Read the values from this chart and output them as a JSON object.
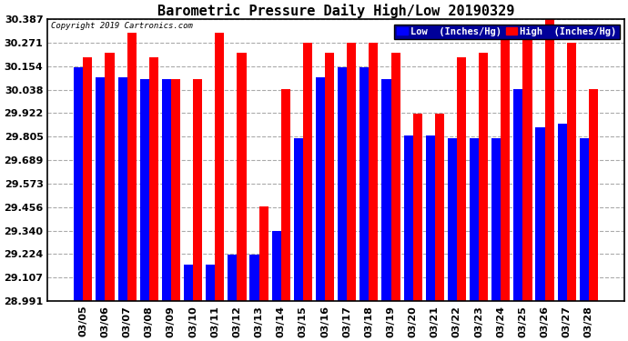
{
  "title": "Barometric Pressure Daily High/Low 20190329",
  "copyright": "Copyright 2019 Cartronics.com",
  "dates": [
    "03/05",
    "03/06",
    "03/07",
    "03/08",
    "03/09",
    "03/10",
    "03/11",
    "03/12",
    "03/13",
    "03/14",
    "03/15",
    "03/16",
    "03/17",
    "03/18",
    "03/19",
    "03/20",
    "03/21",
    "03/22",
    "03/23",
    "03/24",
    "03/25",
    "03/26",
    "03/27",
    "03/28"
  ],
  "low_values": [
    30.15,
    30.1,
    30.1,
    30.09,
    30.09,
    29.17,
    29.17,
    29.22,
    29.22,
    29.34,
    29.8,
    30.1,
    30.15,
    30.15,
    30.09,
    29.81,
    29.81,
    29.8,
    29.8,
    29.8,
    30.04,
    29.85,
    29.87,
    29.8
  ],
  "high_values": [
    30.2,
    30.22,
    30.32,
    30.2,
    30.09,
    30.09,
    30.32,
    30.22,
    29.46,
    30.04,
    30.27,
    30.22,
    30.27,
    30.27,
    30.22,
    29.92,
    29.92,
    30.2,
    30.22,
    30.32,
    30.32,
    30.39,
    30.27,
    30.04
  ],
  "bar_color_low": "#0000ff",
  "bar_color_high": "#ff0000",
  "bg_color": "#ffffff",
  "grid_color": "#aaaaaa",
  "yticks": [
    28.991,
    29.107,
    29.224,
    29.34,
    29.456,
    29.573,
    29.689,
    29.805,
    29.922,
    30.038,
    30.154,
    30.271,
    30.387
  ],
  "ymin": 28.991,
  "ymax": 30.387,
  "title_fontsize": 11,
  "tick_fontsize": 8,
  "legend_low_label": "Low  (Inches/Hg)",
  "legend_high_label": "High  (Inches/Hg)"
}
